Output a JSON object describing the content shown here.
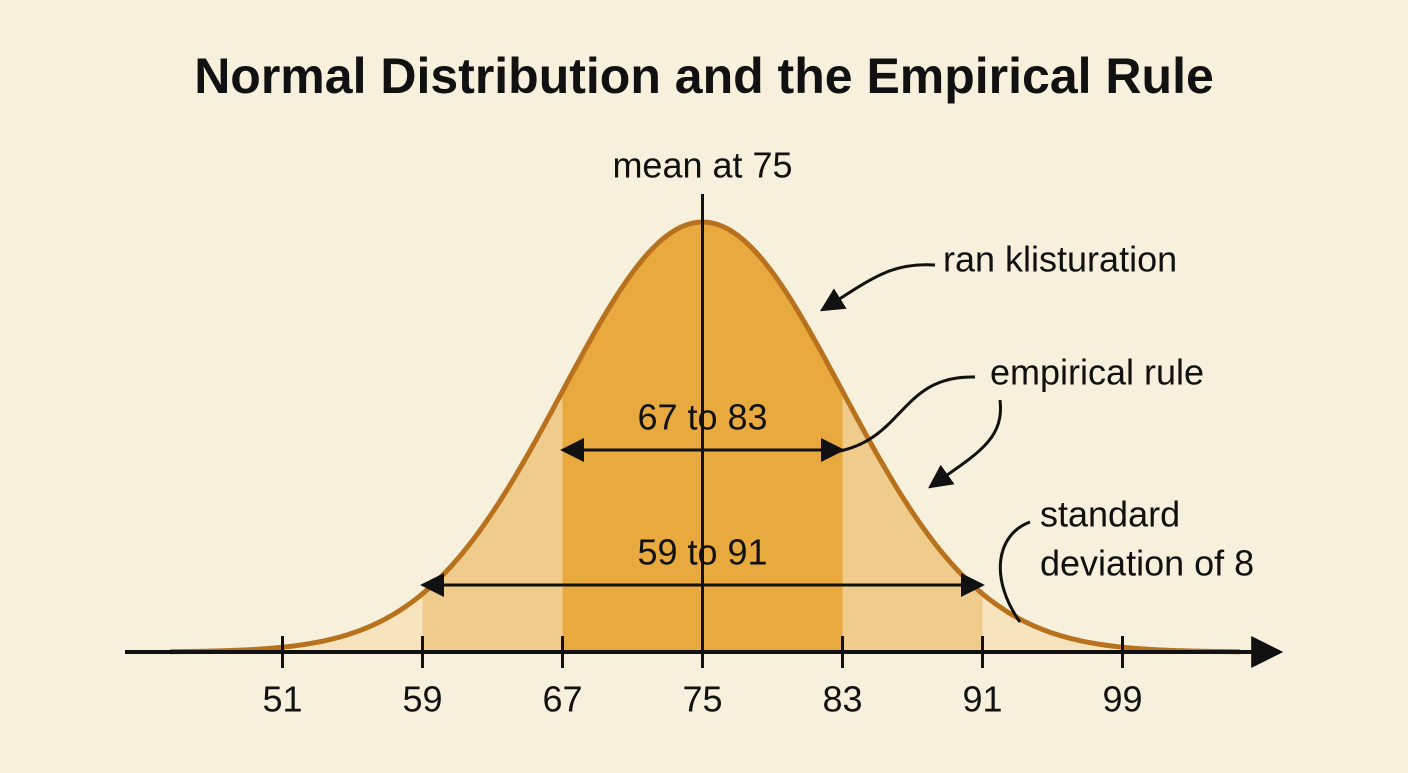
{
  "chart_data": {
    "type": "normal",
    "title": "Normal Distribution and the Empirical Rule",
    "mean": 75,
    "sd": 8,
    "mean_label": "mean at 75",
    "xlim": [
      42,
      108
    ],
    "xticks": [
      51,
      59,
      67,
      75,
      83,
      91,
      99
    ],
    "bands": [
      {
        "label": "59 to 91",
        "range": [
          59,
          91
        ],
        "color": "#efcb8c"
      },
      {
        "label": "67 to 83",
        "range": [
          67,
          83
        ],
        "color": "#e8a93e"
      }
    ],
    "tail_color": "#f7e4bf",
    "curve_color": "#b8721e",
    "annotations": {
      "curve": "ran klisturation",
      "rule": "empirical rule",
      "sd_lines": [
        "standard",
        "deviation of 8"
      ]
    }
  }
}
